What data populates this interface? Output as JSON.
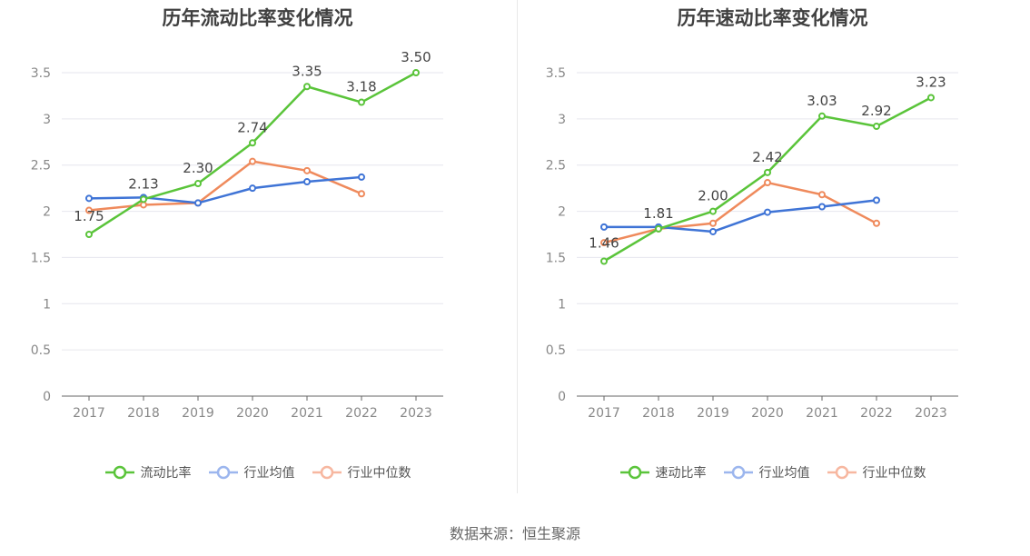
{
  "colors": {
    "green": "#5ac43a",
    "blue": "#3f74d6",
    "orange": "#ef8a5c",
    "legend_blue": "#9cb6ee",
    "legend_orange": "#f7b7a0",
    "axis": "#888888",
    "grid": "#e6e6ee",
    "label": "#444444"
  },
  "source": "数据来源：恒生聚源",
  "chart_data": [
    {
      "type": "line",
      "title": "历年流动比率变化情况",
      "categories": [
        "2017",
        "2018",
        "2019",
        "2020",
        "2021",
        "2022",
        "2023"
      ],
      "ylim": [
        0,
        3.5
      ],
      "yticks": [
        "0",
        "0.5",
        "1",
        "1.5",
        "2",
        "2.5",
        "3",
        "3.5"
      ],
      "grid": true,
      "legend_position": "bottom",
      "series": [
        {
          "name": "流动比率",
          "color": "#5ac43a",
          "values": [
            1.75,
            2.13,
            2.3,
            2.74,
            3.35,
            3.18,
            3.5
          ],
          "labels": [
            "1.75",
            "2.13",
            "2.30",
            "2.74",
            "3.35",
            "3.18",
            "3.50"
          ]
        },
        {
          "name": "行业均值",
          "color": "#3f74d6",
          "values": [
            2.14,
            2.15,
            2.09,
            2.25,
            2.32,
            2.37,
            null
          ]
        },
        {
          "name": "行业中位数",
          "color": "#ef8a5c",
          "values": [
            2.01,
            2.07,
            2.09,
            2.54,
            2.44,
            2.19,
            null
          ]
        }
      ]
    },
    {
      "type": "line",
      "title": "历年速动比率变化情况",
      "categories": [
        "2017",
        "2018",
        "2019",
        "2020",
        "2021",
        "2022",
        "2023"
      ],
      "ylim": [
        0,
        3.5
      ],
      "yticks": [
        "0",
        "0.5",
        "1",
        "1.5",
        "2",
        "2.5",
        "3",
        "3.5"
      ],
      "grid": true,
      "legend_position": "bottom",
      "series": [
        {
          "name": "速动比率",
          "color": "#5ac43a",
          "values": [
            1.46,
            1.81,
            2.0,
            2.42,
            3.03,
            2.92,
            3.23
          ],
          "labels": [
            "1.46",
            "1.81",
            "2.00",
            "2.42",
            "3.03",
            "2.92",
            "3.23"
          ]
        },
        {
          "name": "行业均值",
          "color": "#3f74d6",
          "values": [
            1.83,
            1.83,
            1.78,
            1.99,
            2.05,
            2.12,
            null
          ]
        },
        {
          "name": "行业中位数",
          "color": "#ef8a5c",
          "values": [
            1.66,
            1.81,
            1.87,
            2.31,
            2.18,
            1.87,
            null
          ]
        }
      ]
    }
  ]
}
